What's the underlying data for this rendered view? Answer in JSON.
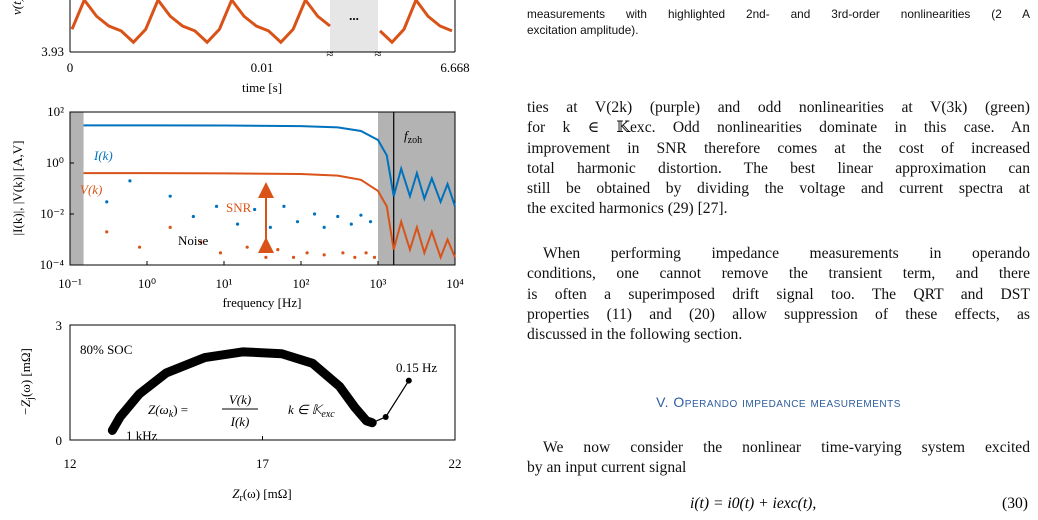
{
  "caption": {
    "lines": [
      "measurements with highlighted 2nd- and 3rd-order nonlinearities (2 A",
      "excitation amplitude)."
    ]
  },
  "paragraphs": [
    {
      "lines": [
        "ties at V(2k) (purple) and odd nonlinearities at V(3k) (green)",
        "for k ∈ 𝕂exc. Odd nonlinearities dominate in this case. An",
        "improvement in SNR therefore comes at the cost of increased",
        "total harmonic distortion. The best linear approximation can",
        "still be obtained by dividing the voltage and current spectra at",
        "the excited harmonics (29) [27]."
      ]
    },
    {
      "lines": [
        "When performing impedance measurements in operando",
        "conditions, one cannot remove the transient term, and there",
        "is often a superimposed drift signal too. The QRT and DST",
        "properties (11) and (20) allow suppression of these effects, as",
        "discussed in the following section."
      ]
    }
  ],
  "section_heading": "V. Operando impedance measurements",
  "paragraph_after": {
    "lines": [
      "We now consider the nonlinear time-varying system excited",
      "by an input current signal"
    ]
  },
  "equation": {
    "text": "i(t) = i0(t) + iexc(t),",
    "number": "(30)"
  },
  "chart_data": [
    {
      "type": "line",
      "ylabel": "v(t)",
      "xlabel": "time [s]",
      "xtick_labels": [
        "0",
        "0.01",
        "6.668"
      ],
      "break_label": "...",
      "ylim": [
        3.93,
        3.97
      ],
      "yticks": [
        3.93
      ],
      "color": "#d95319",
      "segments": [
        {
          "values": [
            3.944,
            3.962,
            3.952,
            3.946,
            3.943,
            3.936,
            3.944,
            3.962,
            3.952,
            3.946,
            3.943,
            3.936,
            3.944,
            3.962,
            3.952,
            3.946,
            3.943,
            3.936,
            3.944,
            3.962,
            3.952,
            3.946
          ]
        },
        {
          "values": [
            3.943,
            3.936,
            3.944,
            3.962,
            3.952,
            3.946,
            3.943
          ]
        }
      ]
    },
    {
      "type": "scatter",
      "ylabel": "|I(k)|, |V(k)| [A,V]",
      "xlabel": "frequency [Hz]",
      "log_x": true,
      "log_y": true,
      "xlim": [
        0.1,
        10000
      ],
      "ylim": [
        0.0001,
        100
      ],
      "xticks": [
        {
          "value": 0.1,
          "label": "10⁻¹"
        },
        {
          "value": 1,
          "label": "10⁰"
        },
        {
          "value": 10,
          "label": "10¹"
        },
        {
          "value": 100,
          "label": "10²"
        },
        {
          "value": 1000,
          "label": "10³"
        },
        {
          "value": 10000,
          "label": "10⁴"
        }
      ],
      "yticks": [
        {
          "value": 0.0001,
          "label": "10⁻⁴"
        },
        {
          "value": 0.01,
          "label": "10⁻²"
        },
        {
          "value": 1,
          "label": "10⁰"
        },
        {
          "value": 100,
          "label": "10²"
        }
      ],
      "shaded_ranges": [
        [
          0.1,
          0.15
        ],
        [
          1000,
          10000
        ]
      ],
      "zoh_frequency": 1600,
      "annotations": {
        "snr": "SNR",
        "noise": "Noise",
        "fzoh_main": "f",
        "fzoh_sub": "zoh"
      },
      "series": [
        {
          "name": "I(k)",
          "color": "#0072bd",
          "x": [
            0.15,
            1,
            10,
            100,
            300,
            600,
            1000,
            1300,
            1600,
            2000,
            2600,
            3200,
            4000,
            5000,
            6500,
            8000,
            10000
          ],
          "values": [
            30,
            30,
            29.5,
            28,
            25,
            18,
            8,
            2,
            0.05,
            0.6,
            0.05,
            0.4,
            0.04,
            0.25,
            0.03,
            0.15,
            0.02
          ]
        },
        {
          "name": "V(k)",
          "color": "#d95319",
          "x": [
            0.15,
            1,
            10,
            100,
            300,
            600,
            1000,
            1300,
            1600,
            2000,
            2600,
            3200,
            4000,
            5000,
            6500,
            8000,
            10000
          ],
          "values": [
            0.4,
            0.4,
            0.39,
            0.37,
            0.32,
            0.22,
            0.08,
            0.02,
            0.0004,
            0.005,
            0.0004,
            0.003,
            0.0003,
            0.002,
            0.0002,
            0.001,
            0.0002
          ]
        },
        {
          "color": "#0072bd",
          "x": [
            0.3,
            0.6,
            2,
            4,
            8,
            15,
            25,
            40,
            60,
            90,
            150,
            200,
            300,
            450,
            600,
            800
          ],
          "values": [
            0.03,
            0.2,
            0.05,
            0.008,
            0.02,
            0.004,
            0.015,
            0.003,
            0.02,
            0.005,
            0.01,
            0.003,
            0.008,
            0.004,
            0.009,
            0.005
          ]
        },
        {
          "color": "#d95319",
          "x": [
            0.3,
            0.8,
            2,
            5,
            9,
            20,
            35,
            50,
            80,
            120,
            200,
            350,
            500,
            700,
            900
          ],
          "values": [
            0.002,
            0.0005,
            0.003,
            0.0008,
            0.0003,
            0.0005,
            0.0002,
            0.0004,
            0.0002,
            0.0003,
            0.00025,
            0.0003,
            0.0002,
            0.0003,
            0.0002
          ]
        }
      ]
    },
    {
      "type": "scatter",
      "xlim": [
        12,
        22
      ],
      "ylim": [
        0,
        3
      ],
      "xticks": [
        12,
        17,
        22
      ],
      "yticks": [
        0,
        3
      ],
      "ylabel": {
        "pre": "−Z",
        "sub": "j",
        "post": "(ω) [mΩ]"
      },
      "xlabel": {
        "pre": "Z",
        "sub": "r",
        "post": "(ω) [mΩ]"
      },
      "annotations": {
        "soc": "80% SOC",
        "low_freq": "0.15 Hz",
        "high_freq": "1 kHz",
        "formula": {
          "lhs": "Z(ω",
          "lhs_sub": "k",
          "lhs_end": ") =",
          "num": "V(k)",
          "den": "I(k)",
          "set": "k ∈ 𝕂",
          "set_sub": "exc"
        }
      },
      "series": [
        {
          "color": "#000000",
          "x": [
            13.1,
            13.3,
            13.8,
            14.5,
            15.5,
            16.5,
            17.5,
            18.3,
            19.0,
            19.4,
            19.7,
            19.85
          ],
          "values": [
            0.25,
            0.6,
            1.2,
            1.75,
            2.15,
            2.3,
            2.25,
            2.0,
            1.4,
            0.85,
            0.5,
            0.45
          ]
        },
        {
          "color": "#000000",
          "x": [
            19.85,
            20.2,
            20.8
          ],
          "values": [
            0.45,
            0.6,
            1.55
          ]
        }
      ]
    }
  ]
}
